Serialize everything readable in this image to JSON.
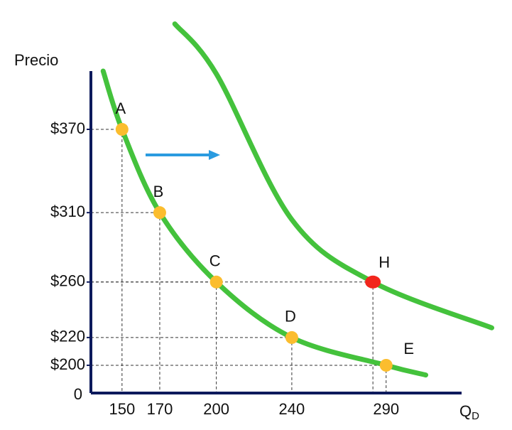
{
  "chart_data": {
    "type": "line",
    "y_label": "Precio",
    "x_label": "Q",
    "x_label_sub": "D",
    "origin_label": "0",
    "xlim": [
      133.5,
      330
    ],
    "ylim": [
      180,
      412
    ],
    "xticks": [
      150,
      170,
      200,
      240,
      290
    ],
    "yticks": [
      {
        "value": 200,
        "label": "$200"
      },
      {
        "value": 220,
        "label": "$220"
      },
      {
        "value": 260,
        "label": "$260"
      },
      {
        "value": 310,
        "label": "$310"
      },
      {
        "value": 370,
        "label": "$370"
      }
    ],
    "series": [
      {
        "color": "#44c23c",
        "x": [
          140,
          150,
          170,
          200,
          240,
          290,
          311
        ],
        "values": [
          412,
          370,
          310,
          260,
          220,
          200,
          193
        ]
      },
      {
        "color": "#44c23c",
        "x": [
          178,
          200,
          240,
          283,
          346
        ],
        "values": [
          446,
          410,
          305,
          260,
          227
        ]
      }
    ],
    "points": [
      {
        "label": "A",
        "x": 150,
        "y": 370,
        "color": "#fbbd2e"
      },
      {
        "label": "B",
        "x": 170,
        "y": 310,
        "color": "#fbbd2e"
      },
      {
        "label": "C",
        "x": 200,
        "y": 260,
        "color": "#fbbd2e"
      },
      {
        "label": "D",
        "x": 240,
        "y": 220,
        "color": "#fbbd2e"
      },
      {
        "label": "E",
        "x": 290,
        "y": 200,
        "color": "#fbbd2e"
      },
      {
        "label": "H",
        "x": 283,
        "y": 260,
        "color": "#f2261c"
      }
    ]
  }
}
